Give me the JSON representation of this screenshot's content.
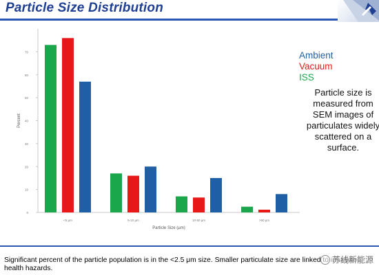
{
  "slide": {
    "title": "Particle Size Distribution",
    "footer_text": "Significant percent of the particle population is in the <2.5 μm size.  Smaller particulate size are linked to inhalation health hazards.",
    "note_text": "Particle size is measured from SEM images of particulates widely scattered on a surface.",
    "watermark_text": "苏线新能源",
    "colors": {
      "title": "#1f3f93",
      "rule": "#2a56b7"
    }
  },
  "legend": [
    {
      "label": "Ambient",
      "color": "#1f5fa6"
    },
    {
      "label": "Vacuum",
      "color": "#e81818"
    },
    {
      "label": "ISS",
      "color": "#1aa64a"
    }
  ],
  "chart_data": {
    "type": "bar",
    "categories": [
      "<5 µm",
      "5-10 µm",
      "10-50 µm",
      ">50 µm"
    ],
    "series": [
      {
        "name": "ISS",
        "color": "#1aa64a",
        "values": [
          73,
          17,
          7,
          2.5
        ]
      },
      {
        "name": "Vacuum",
        "color": "#e81818",
        "values": [
          76,
          16,
          6.5,
          1.2
        ]
      },
      {
        "name": "Ambient",
        "color": "#1f5fa6",
        "values": [
          57,
          20,
          15,
          8
        ]
      }
    ],
    "xlabel": "Particle Size (µm)",
    "ylabel": "Percent",
    "ylim": [
      0,
      80
    ],
    "yticks": [
      "0",
      "10",
      "20",
      "30",
      "40",
      "50",
      "60",
      "70"
    ],
    "grid": false
  }
}
